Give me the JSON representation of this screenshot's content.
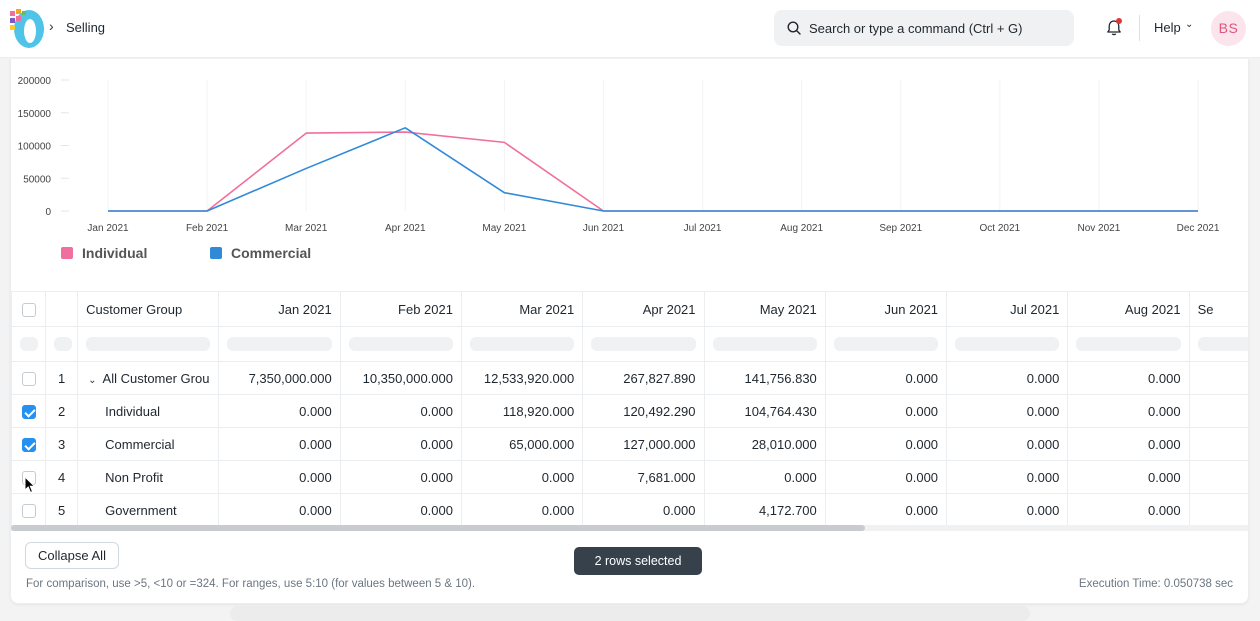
{
  "navbar": {
    "breadcrumb": "Selling",
    "search_placeholder": "Search or type a command (Ctrl + G)",
    "help_label": "Help",
    "avatar_initials": "BS"
  },
  "chart_data": {
    "type": "line",
    "x": [
      "Jan 2021",
      "Feb 2021",
      "Mar 2021",
      "Apr 2021",
      "May 2021",
      "Jun 2021",
      "Jul 2021",
      "Aug 2021",
      "Sep 2021",
      "Oct 2021",
      "Nov 2021",
      "Dec 2021"
    ],
    "y_ticks": [
      "0",
      "50000",
      "100000",
      "150000",
      "200000"
    ],
    "ylim": [
      0,
      200000
    ],
    "series": [
      {
        "name": "Individual",
        "color": "#f06f9e",
        "values": [
          0,
          0,
          118920,
          120492.29,
          104764.43,
          0,
          0,
          0,
          0,
          0,
          0,
          0
        ]
      },
      {
        "name": "Commercial",
        "color": "#318ad8",
        "values": [
          0,
          0,
          65000,
          127000,
          28010,
          0,
          0,
          0,
          0,
          0,
          0,
          0
        ]
      }
    ],
    "legend_position": "bottom-left",
    "grid": true
  },
  "table": {
    "headers": [
      "Customer Group",
      "Jan 2021",
      "Feb 2021",
      "Mar 2021",
      "Apr 2021",
      "May 2021",
      "Jun 2021",
      "Jul 2021",
      "Aug 2021",
      "Se"
    ],
    "rows": [
      {
        "index": "1",
        "checked": false,
        "name": "All Customer Grou",
        "group": true,
        "values": [
          "7,350,000.000",
          "10,350,000.000",
          "12,533,920.000",
          "267,827.890",
          "141,756.830",
          "0.000",
          "0.000",
          "0.000"
        ]
      },
      {
        "index": "2",
        "checked": true,
        "name": "Individual",
        "group": false,
        "values": [
          "0.000",
          "0.000",
          "118,920.000",
          "120,492.290",
          "104,764.430",
          "0.000",
          "0.000",
          "0.000"
        ]
      },
      {
        "index": "3",
        "checked": true,
        "name": "Commercial",
        "group": false,
        "values": [
          "0.000",
          "0.000",
          "65,000.000",
          "127,000.000",
          "28,010.000",
          "0.000",
          "0.000",
          "0.000"
        ]
      },
      {
        "index": "4",
        "checked": false,
        "name": "Non Profit",
        "group": false,
        "values": [
          "0.000",
          "0.000",
          "0.000",
          "7,681.000",
          "0.000",
          "0.000",
          "0.000",
          "0.000"
        ]
      },
      {
        "index": "5",
        "checked": false,
        "name": "Government",
        "group": false,
        "values": [
          "0.000",
          "0.000",
          "0.000",
          "0.000",
          "4,172.700",
          "0.000",
          "0.000",
          "0.000"
        ]
      }
    ]
  },
  "tooltip": "2 rows selected",
  "footer": {
    "collapse_label": "Collapse All",
    "hint": "For comparison, use >5, <10 or =324. For ranges, use 5:10 (for values between 5 & 10).",
    "exec_time": "Execution Time: 0.050738 sec"
  }
}
